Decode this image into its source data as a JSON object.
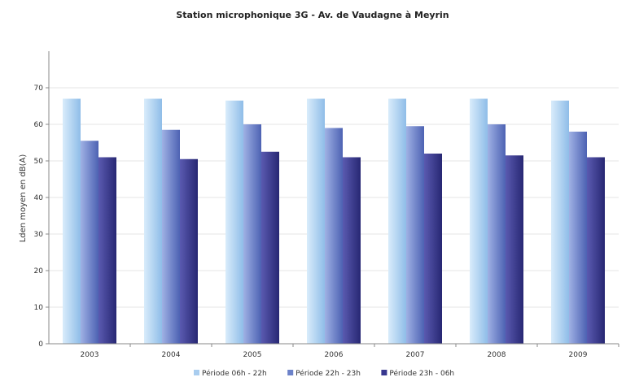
{
  "chart_data": {
    "type": "bar",
    "title": "Station microphonique 3G - Av. de Vaudagne à Meyrin",
    "ylabel": "Lden moyen en dB(A)",
    "xlabel": "",
    "categories": [
      "2003",
      "2004",
      "2005",
      "2006",
      "2007",
      "2008",
      "2009"
    ],
    "ylim": [
      0,
      80
    ],
    "yticks": [
      "0",
      "10",
      "20",
      "30",
      "40",
      "50",
      "60",
      "70"
    ],
    "grid": true,
    "legend_position": "bottom",
    "series": [
      {
        "name": "Période 06h - 22h",
        "color": "#a9cdef",
        "values": [
          67.0,
          67.0,
          66.5,
          67.0,
          67.0,
          67.0,
          66.5
        ]
      },
      {
        "name": "Période 22h - 23h",
        "color": "#6c82c9",
        "values": [
          55.5,
          58.5,
          60.0,
          59.0,
          59.5,
          60.0,
          58.0
        ]
      },
      {
        "name": "Période 23h - 06h",
        "color": "#38378f",
        "values": [
          51.0,
          50.5,
          52.5,
          51.0,
          52.0,
          51.5,
          51.0
        ]
      }
    ]
  }
}
